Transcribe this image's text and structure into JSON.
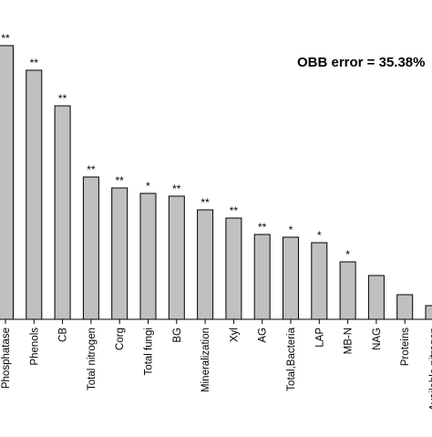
{
  "chart_data": {
    "type": "bar",
    "annotation": "OBB error = 35.38%",
    "categories": [
      "Phosphatase",
      "Phenols",
      "CB",
      "Total nitrogen",
      "Corg",
      "Total fungi",
      "BG",
      "Mineralization",
      "Xyl",
      "AG",
      "Total,Bacteria",
      "LAP",
      "MB-N",
      "NAG",
      "Proteins",
      "Available nitrogen"
    ],
    "values": [
      100,
      91,
      78,
      52,
      48,
      46,
      45,
      40,
      37,
      31,
      30,
      28,
      21,
      16,
      9,
      5
    ],
    "significance": [
      "**",
      "**",
      "**",
      "**",
      "**",
      "*",
      "**",
      "**",
      "**",
      "**",
      "*",
      "*",
      "*",
      "",
      "",
      ""
    ],
    "ylim": [
      0,
      100
    ],
    "bar_color": "#c0c0c0",
    "bar_edge_color": "#000000",
    "grid": false,
    "legend": "none"
  }
}
